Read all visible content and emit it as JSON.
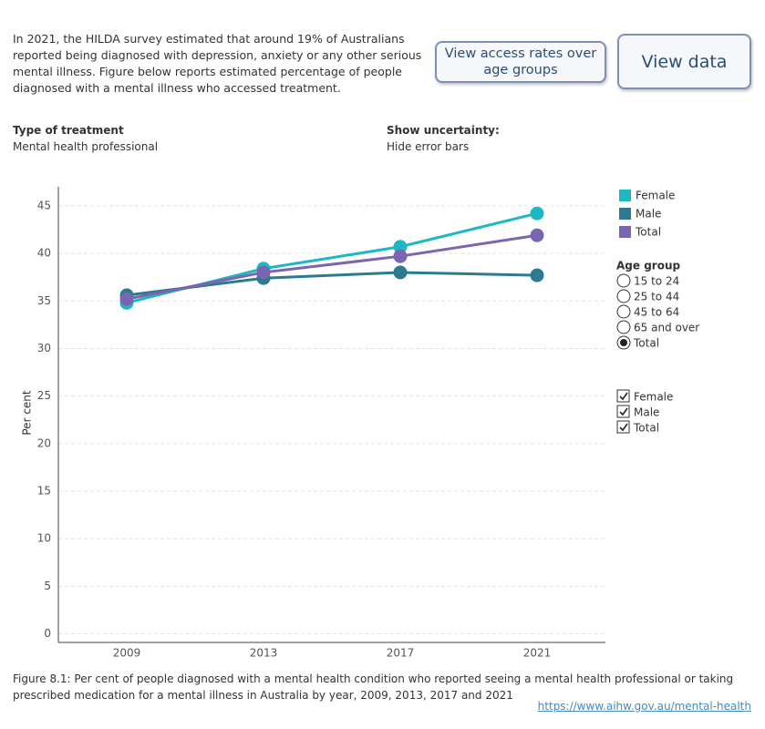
{
  "intro": "In 2021, the HILDA survey estimated that around 19% of Australians reported being diagnosed with depression, anxiety or any other serious mental illness. Figure below reports estimated percentage of people diagnosed with a mental illness who accessed treatment.",
  "buttons": [
    "View access rates over age groups",
    "View data"
  ],
  "filters": [
    {
      "label": "Type of treatment",
      "value": "Mental health professional"
    },
    {
      "label": "Show uncertainty:",
      "value": "Hide error bars"
    }
  ],
  "chart_data": {
    "type": "line",
    "y_label": "Per cent",
    "categories": [
      "2009",
      "2013",
      "2017",
      "2021"
    ],
    "series": [
      {
        "name": "Female",
        "color": "#1cb8c4",
        "values": [
          34.8,
          38.4,
          40.7,
          44.2
        ]
      },
      {
        "name": "Male",
        "color": "#2b7a8e",
        "values": [
          35.6,
          37.4,
          38.0,
          37.7
        ]
      },
      {
        "name": "Total",
        "color": "#7b64b1",
        "values": [
          35.2,
          38.0,
          39.7,
          41.9
        ]
      }
    ],
    "ylim": [
      -0.9,
      47
    ],
    "yticks": [
      0,
      5,
      10,
      15,
      20,
      25,
      30,
      35,
      40,
      45
    ],
    "grid": true,
    "legend": "right"
  },
  "age_group": {
    "title": "Age group",
    "options": [
      {
        "label": "15 to 24",
        "checked": false
      },
      {
        "label": "25 to 44",
        "checked": false
      },
      {
        "label": "45 to 64",
        "checked": false
      },
      {
        "label": "65 and over",
        "checked": false
      },
      {
        "label": "Total",
        "checked": true
      }
    ]
  },
  "sex_filter": {
    "options": [
      {
        "label": "Female",
        "checked": true
      },
      {
        "label": "Male",
        "checked": true
      },
      {
        "label": "Total",
        "checked": true
      }
    ]
  },
  "caption": "Figure 8.1: Per cent of people diagnosed with a mental health condition who reported seeing a mental health professional or taking prescribed medication for a mental illness in Australia by year, 2009, 2013, 2017 and 2021",
  "link": "https://www.aihw.gov.au/mental-health"
}
